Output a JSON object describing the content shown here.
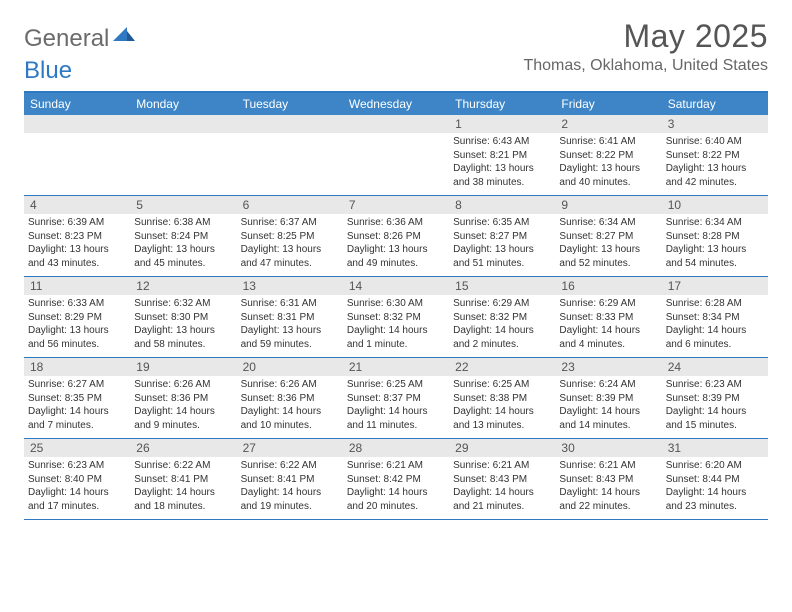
{
  "logo": {
    "word1": "General",
    "word2": "Blue"
  },
  "title": "May 2025",
  "location": "Thomas, Oklahoma, United States",
  "colors": {
    "header_bar": "#3d85c6",
    "border": "#2f79c2",
    "daynum_bg": "#e8e8e8",
    "text": "#333333",
    "title_text": "#555555",
    "logo_gray": "#6b6b6b"
  },
  "days_of_week": [
    "Sunday",
    "Monday",
    "Tuesday",
    "Wednesday",
    "Thursday",
    "Friday",
    "Saturday"
  ],
  "weeks": [
    [
      null,
      null,
      null,
      null,
      {
        "n": "1",
        "sunrise": "Sunrise: 6:43 AM",
        "sunset": "Sunset: 8:21 PM",
        "daylight": "Daylight: 13 hours and 38 minutes."
      },
      {
        "n": "2",
        "sunrise": "Sunrise: 6:41 AM",
        "sunset": "Sunset: 8:22 PM",
        "daylight": "Daylight: 13 hours and 40 minutes."
      },
      {
        "n": "3",
        "sunrise": "Sunrise: 6:40 AM",
        "sunset": "Sunset: 8:22 PM",
        "daylight": "Daylight: 13 hours and 42 minutes."
      }
    ],
    [
      {
        "n": "4",
        "sunrise": "Sunrise: 6:39 AM",
        "sunset": "Sunset: 8:23 PM",
        "daylight": "Daylight: 13 hours and 43 minutes."
      },
      {
        "n": "5",
        "sunrise": "Sunrise: 6:38 AM",
        "sunset": "Sunset: 8:24 PM",
        "daylight": "Daylight: 13 hours and 45 minutes."
      },
      {
        "n": "6",
        "sunrise": "Sunrise: 6:37 AM",
        "sunset": "Sunset: 8:25 PM",
        "daylight": "Daylight: 13 hours and 47 minutes."
      },
      {
        "n": "7",
        "sunrise": "Sunrise: 6:36 AM",
        "sunset": "Sunset: 8:26 PM",
        "daylight": "Daylight: 13 hours and 49 minutes."
      },
      {
        "n": "8",
        "sunrise": "Sunrise: 6:35 AM",
        "sunset": "Sunset: 8:27 PM",
        "daylight": "Daylight: 13 hours and 51 minutes."
      },
      {
        "n": "9",
        "sunrise": "Sunrise: 6:34 AM",
        "sunset": "Sunset: 8:27 PM",
        "daylight": "Daylight: 13 hours and 52 minutes."
      },
      {
        "n": "10",
        "sunrise": "Sunrise: 6:34 AM",
        "sunset": "Sunset: 8:28 PM",
        "daylight": "Daylight: 13 hours and 54 minutes."
      }
    ],
    [
      {
        "n": "11",
        "sunrise": "Sunrise: 6:33 AM",
        "sunset": "Sunset: 8:29 PM",
        "daylight": "Daylight: 13 hours and 56 minutes."
      },
      {
        "n": "12",
        "sunrise": "Sunrise: 6:32 AM",
        "sunset": "Sunset: 8:30 PM",
        "daylight": "Daylight: 13 hours and 58 minutes."
      },
      {
        "n": "13",
        "sunrise": "Sunrise: 6:31 AM",
        "sunset": "Sunset: 8:31 PM",
        "daylight": "Daylight: 13 hours and 59 minutes."
      },
      {
        "n": "14",
        "sunrise": "Sunrise: 6:30 AM",
        "sunset": "Sunset: 8:32 PM",
        "daylight": "Daylight: 14 hours and 1 minute."
      },
      {
        "n": "15",
        "sunrise": "Sunrise: 6:29 AM",
        "sunset": "Sunset: 8:32 PM",
        "daylight": "Daylight: 14 hours and 2 minutes."
      },
      {
        "n": "16",
        "sunrise": "Sunrise: 6:29 AM",
        "sunset": "Sunset: 8:33 PM",
        "daylight": "Daylight: 14 hours and 4 minutes."
      },
      {
        "n": "17",
        "sunrise": "Sunrise: 6:28 AM",
        "sunset": "Sunset: 8:34 PM",
        "daylight": "Daylight: 14 hours and 6 minutes."
      }
    ],
    [
      {
        "n": "18",
        "sunrise": "Sunrise: 6:27 AM",
        "sunset": "Sunset: 8:35 PM",
        "daylight": "Daylight: 14 hours and 7 minutes."
      },
      {
        "n": "19",
        "sunrise": "Sunrise: 6:26 AM",
        "sunset": "Sunset: 8:36 PM",
        "daylight": "Daylight: 14 hours and 9 minutes."
      },
      {
        "n": "20",
        "sunrise": "Sunrise: 6:26 AM",
        "sunset": "Sunset: 8:36 PM",
        "daylight": "Daylight: 14 hours and 10 minutes."
      },
      {
        "n": "21",
        "sunrise": "Sunrise: 6:25 AM",
        "sunset": "Sunset: 8:37 PM",
        "daylight": "Daylight: 14 hours and 11 minutes."
      },
      {
        "n": "22",
        "sunrise": "Sunrise: 6:25 AM",
        "sunset": "Sunset: 8:38 PM",
        "daylight": "Daylight: 14 hours and 13 minutes."
      },
      {
        "n": "23",
        "sunrise": "Sunrise: 6:24 AM",
        "sunset": "Sunset: 8:39 PM",
        "daylight": "Daylight: 14 hours and 14 minutes."
      },
      {
        "n": "24",
        "sunrise": "Sunrise: 6:23 AM",
        "sunset": "Sunset: 8:39 PM",
        "daylight": "Daylight: 14 hours and 15 minutes."
      }
    ],
    [
      {
        "n": "25",
        "sunrise": "Sunrise: 6:23 AM",
        "sunset": "Sunset: 8:40 PM",
        "daylight": "Daylight: 14 hours and 17 minutes."
      },
      {
        "n": "26",
        "sunrise": "Sunrise: 6:22 AM",
        "sunset": "Sunset: 8:41 PM",
        "daylight": "Daylight: 14 hours and 18 minutes."
      },
      {
        "n": "27",
        "sunrise": "Sunrise: 6:22 AM",
        "sunset": "Sunset: 8:41 PM",
        "daylight": "Daylight: 14 hours and 19 minutes."
      },
      {
        "n": "28",
        "sunrise": "Sunrise: 6:21 AM",
        "sunset": "Sunset: 8:42 PM",
        "daylight": "Daylight: 14 hours and 20 minutes."
      },
      {
        "n": "29",
        "sunrise": "Sunrise: 6:21 AM",
        "sunset": "Sunset: 8:43 PM",
        "daylight": "Daylight: 14 hours and 21 minutes."
      },
      {
        "n": "30",
        "sunrise": "Sunrise: 6:21 AM",
        "sunset": "Sunset: 8:43 PM",
        "daylight": "Daylight: 14 hours and 22 minutes."
      },
      {
        "n": "31",
        "sunrise": "Sunrise: 6:20 AM",
        "sunset": "Sunset: 8:44 PM",
        "daylight": "Daylight: 14 hours and 23 minutes."
      }
    ]
  ]
}
